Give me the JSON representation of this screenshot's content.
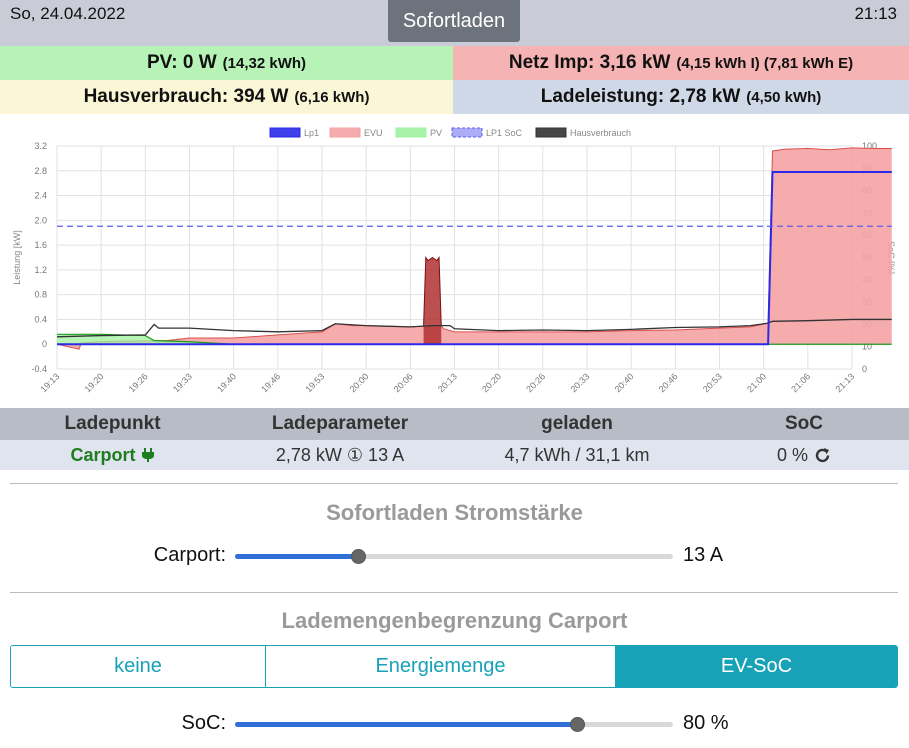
{
  "header": {
    "date": "So, 24.04.2022",
    "time": "21:13",
    "mode_button": "Sofortladen"
  },
  "stats": {
    "pv_main": "PV: 0 W",
    "pv_sub": "(14,32 kWh)",
    "netz_main": "Netz Imp: 3,16 kW",
    "netz_sub": "(4,15 kWh I) (7,81 kWh E)",
    "haus_main": "Hausverbrauch: 394 W",
    "haus_sub": "(6,16 kWh)",
    "lade_main": "Ladeleistung: 2,78 kW",
    "lade_sub": "(4,50 kWh)"
  },
  "chart_data": {
    "type": "area",
    "legend": [
      "Lp1",
      "EVU",
      "PV",
      "LP1 SoC",
      "Hausverbrauch"
    ],
    "colors": {
      "Lp1": "#2a2ae8",
      "EVU": "#f5a3a3",
      "PV": "#9ef29e",
      "LP1 SoC": "#5b5bf0",
      "Hausverbrauch": "#333333"
    },
    "ylabel_left": "Leistung [kW]",
    "ylabel_right": "SoC [%]",
    "ylim": [
      -0.4,
      3.2
    ],
    "y2lim": [
      0,
      100
    ],
    "yticks": [
      "3.2",
      "2.8",
      "2.4",
      "2.0",
      "1.6",
      "1.2",
      "0.8",
      "0.4",
      "0",
      "-0.4"
    ],
    "y2ticks": [
      "100",
      "90",
      "80",
      "70",
      "60",
      "50",
      "40",
      "30",
      "20",
      "10",
      "0"
    ],
    "xticks": [
      "19:13",
      "19:20",
      "19:26",
      "19:33",
      "19:40",
      "19:46",
      "19:53",
      "20:00",
      "20:06",
      "20:13",
      "20:20",
      "20:26",
      "20:33",
      "20:40",
      "20:46",
      "20:53",
      "21:00",
      "21:06",
      "21:13"
    ],
    "series": [
      {
        "name": "EVU",
        "x": [
          0,
          0.5,
          0.55,
          1,
          1.5,
          2.5,
          3,
          4,
          5,
          6,
          6.3,
          6.7,
          7,
          8,
          8.5,
          8.7,
          8.75,
          9,
          10,
          11,
          12,
          13,
          14,
          15,
          15.7,
          16.1,
          16.2,
          16.5,
          17,
          17.5,
          18,
          18.5,
          18.9
        ],
        "values": [
          0,
          -0.08,
          0.02,
          0.04,
          0.05,
          0.06,
          0.1,
          0.1,
          0.15,
          0.2,
          0.33,
          0.3,
          0.3,
          0.28,
          0.3,
          0.3,
          0.25,
          0.2,
          0.2,
          0.2,
          0.2,
          0.22,
          0.23,
          0.26,
          0.28,
          0.34,
          3.12,
          3.15,
          3.16,
          3.14,
          3.17,
          3.16,
          3.16
        ]
      },
      {
        "name": "PV",
        "x": [
          0,
          1,
          2,
          2.2,
          3,
          4,
          16,
          16.2,
          18.9
        ],
        "values": [
          0.16,
          0.16,
          0.14,
          0.06,
          0.04,
          0,
          0,
          0,
          0
        ]
      },
      {
        "name": "Hausverbrauch",
        "x": [
          0,
          1,
          2,
          2.2,
          2.3,
          3,
          4,
          5,
          6,
          6.3,
          7,
          8,
          8.5,
          8.9,
          9,
          10,
          11,
          12,
          13,
          14,
          15,
          15.7,
          16.1,
          16.2,
          17,
          18,
          18.9
        ],
        "values": [
          0.12,
          0.14,
          0.15,
          0.32,
          0.26,
          0.26,
          0.22,
          0.2,
          0.22,
          0.33,
          0.3,
          0.28,
          0.3,
          0.3,
          0.25,
          0.22,
          0.23,
          0.22,
          0.24,
          0.27,
          0.28,
          0.3,
          0.34,
          0.37,
          0.38,
          0.4,
          0.4
        ]
      },
      {
        "name": "Lp1",
        "x": [
          0,
          16.1,
          16.2,
          18.9
        ],
        "values": [
          0,
          0,
          2.78,
          2.78
        ]
      },
      {
        "name": "LP1 SoC",
        "x": [
          0,
          18.9
        ],
        "values": [
          64,
          64
        ]
      }
    ],
    "spike": {
      "series": "Hausverbrauch",
      "x": [
        8.3,
        8.35,
        8.4,
        8.5,
        8.6,
        8.65,
        8.7
      ],
      "values": [
        0.3,
        1.4,
        1.35,
        1.4,
        1.35,
        1.4,
        0.3
      ]
    }
  },
  "ladepunkt_table": {
    "headers": [
      "Ladepunkt",
      "Ladeparameter",
      "geladen",
      "SoC"
    ],
    "row": {
      "name": "Carport",
      "param": "2,78 kW ① 13 A",
      "geladen": "4,7 kWh / 31,1 km",
      "soc": "0 %"
    }
  },
  "sofort": {
    "title": "Sofortladen Stromstärke",
    "label": "Carport:",
    "value_text": "13 A",
    "value": 0.28
  },
  "lademenge": {
    "title": "Lademengenbegrenzung Carport",
    "buttons": [
      "keine",
      "Energiemenge",
      "EV-SoC"
    ],
    "active": "EV-SoC",
    "soc_label": "SoC:",
    "soc_value_text": "80 %",
    "soc_value": 0.78
  }
}
